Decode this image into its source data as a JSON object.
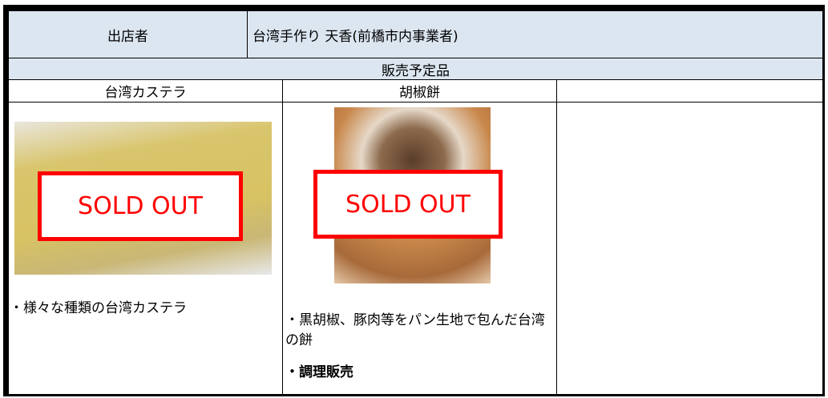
{
  "header": {
    "label": "出店者",
    "value": "台湾手作り 天香(前橋市内事業者)"
  },
  "section_title": "販売予定品",
  "items": [
    {
      "name": "台湾カステラ",
      "badge": "SOLD OUT",
      "description": "・様々な種類の台湾カステラ"
    },
    {
      "name": "胡椒餅",
      "badge": "SOLD OUT",
      "description": "・黒胡椒、豚肉等をパン生地で包んだ台湾の餅",
      "note": "・調理販売"
    }
  ]
}
